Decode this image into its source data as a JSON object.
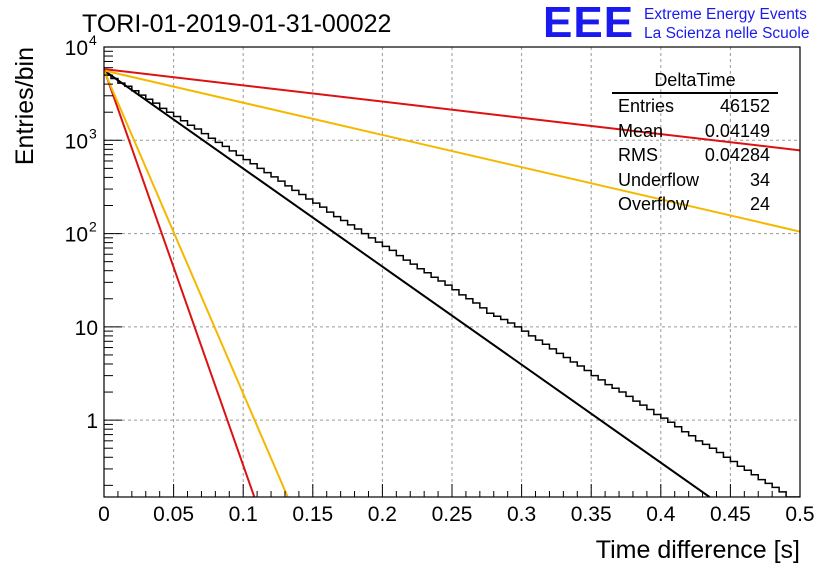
{
  "header": {
    "run_title": "TORI-01-2019-01-31-00022",
    "brand_logo": "EEE",
    "brand_line1": "Extreme Energy Events",
    "brand_line2": "La Scienza nelle Scuole"
  },
  "stats_box": {
    "title": "DeltaTime",
    "rows": [
      {
        "label": "Entries",
        "value": "46152"
      },
      {
        "label": "Mean",
        "value": "0.04149"
      },
      {
        "label": "RMS",
        "value": "0.04284"
      },
      {
        "label": "Underflow",
        "value": "34"
      },
      {
        "label": "Overflow",
        "value": "24"
      }
    ]
  },
  "chart_data": {
    "type": "line",
    "xlabel": "Time difference [s]",
    "ylabel": "Entries/bin",
    "xlim": [
      0,
      0.5
    ],
    "ylim": [
      0.15,
      10000
    ],
    "y_scale": "log",
    "grid": true,
    "x_ticks": [
      {
        "value": 0,
        "label": "0"
      },
      {
        "value": 0.05,
        "label": "0.05"
      },
      {
        "value": 0.1,
        "label": "0.1"
      },
      {
        "value": 0.15,
        "label": "0.15"
      },
      {
        "value": 0.2,
        "label": "0.2"
      },
      {
        "value": 0.25,
        "label": "0.25"
      },
      {
        "value": 0.3,
        "label": "0.3"
      },
      {
        "value": 0.35,
        "label": "0.35"
      },
      {
        "value": 0.4,
        "label": "0.4"
      },
      {
        "value": 0.45,
        "label": "0.45"
      },
      {
        "value": 0.5,
        "label": "0.5"
      }
    ],
    "y_ticks": [
      {
        "value": 1,
        "label": "1",
        "exp": ""
      },
      {
        "value": 10,
        "label": "10",
        "exp": ""
      },
      {
        "value": 100,
        "label": "10",
        "exp": "2"
      },
      {
        "value": 1000,
        "label": "10",
        "exp": "3"
      },
      {
        "value": 10000,
        "label": "10",
        "exp": "4"
      }
    ],
    "histogram": {
      "bin_width": 0.005,
      "color": "#000000",
      "values": [
        5000,
        4600,
        4100,
        3800,
        3400,
        3050,
        2750,
        2500,
        2200,
        2000,
        1800,
        1620,
        1450,
        1320,
        1180,
        1050,
        950,
        860,
        770,
        690,
        620,
        560,
        500,
        450,
        405,
        365,
        325,
        290,
        262,
        235,
        212,
        192,
        170,
        152,
        138,
        124,
        112,
        100,
        90,
        81,
        73,
        66,
        58,
        52,
        47,
        42,
        38,
        34,
        31,
        28,
        25,
        22,
        20,
        18,
        16,
        14,
        13,
        12,
        11,
        10,
        9,
        8,
        7.2,
        6.5,
        5.8,
        5.2,
        4.7,
        4.2,
        3.8,
        3.4,
        3.0,
        2.7,
        2.4,
        2.2,
        2.0,
        1.8,
        1.6,
        1.45,
        1.3,
        1.15,
        1.05,
        0.95,
        0.85,
        0.75,
        0.68,
        0.6,
        0.55,
        0.5,
        0.45,
        0.4,
        0.36,
        0.32,
        0.29,
        0.26,
        0.23,
        0.21,
        0.19,
        0.17,
        0.15,
        0.14
      ]
    },
    "fits": [
      {
        "color": "#000000",
        "x": [
          0,
          0.435
        ],
        "y": [
          5600,
          0.15
        ]
      },
      {
        "color": "#dd1111",
        "x": [
          0,
          0.5
        ],
        "y": [
          5800,
          780
        ]
      },
      {
        "color": "#f5b800",
        "x": [
          0,
          0.5
        ],
        "y": [
          5600,
          105
        ]
      },
      {
        "color": "#dd1111",
        "x": [
          0,
          0.108
        ],
        "y": [
          5800,
          0.15
        ]
      },
      {
        "color": "#f5b800",
        "x": [
          0,
          0.132
        ],
        "y": [
          5600,
          0.15
        ]
      }
    ]
  }
}
